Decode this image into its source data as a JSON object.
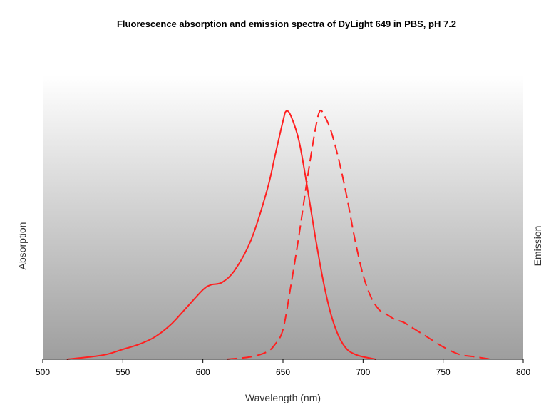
{
  "chart_data": {
    "type": "line",
    "title": "Fluorescence absorption and emission spectra of DyLight 649 in PBS, pH 7.2",
    "xlabel": "Wavelength (nm)",
    "ylabel_left": "Absorption",
    "ylabel_right": "Emission",
    "xlim": [
      500,
      800
    ],
    "ylim": [
      0,
      1
    ],
    "xticks": [
      500,
      550,
      600,
      650,
      700,
      750,
      800
    ],
    "grid": false,
    "legend": "none",
    "background": "vertical gradient, light gray at top to darker gray at bottom",
    "series": [
      {
        "style": "solid",
        "color": "#ff2020",
        "points": [
          [
            515,
            0.0
          ],
          [
            530,
            0.01
          ],
          [
            540,
            0.02
          ],
          [
            550,
            0.04
          ],
          [
            560,
            0.06
          ],
          [
            570,
            0.09
          ],
          [
            580,
            0.14
          ],
          [
            590,
            0.21
          ],
          [
            600,
            0.28
          ],
          [
            605,
            0.3
          ],
          [
            612,
            0.31
          ],
          [
            620,
            0.36
          ],
          [
            630,
            0.48
          ],
          [
            640,
            0.68
          ],
          [
            645,
            0.82
          ],
          [
            650,
            0.96
          ],
          [
            652,
            1.0
          ],
          [
            655,
            0.98
          ],
          [
            660,
            0.88
          ],
          [
            665,
            0.7
          ],
          [
            670,
            0.5
          ],
          [
            675,
            0.32
          ],
          [
            680,
            0.18
          ],
          [
            685,
            0.09
          ],
          [
            690,
            0.04
          ],
          [
            695,
            0.02
          ],
          [
            700,
            0.01
          ],
          [
            708,
            0.0
          ]
        ]
      },
      {
        "style": "dashed",
        "color": "#ff2020",
        "points": [
          [
            615,
            0.0
          ],
          [
            630,
            0.01
          ],
          [
            640,
            0.03
          ],
          [
            645,
            0.06
          ],
          [
            650,
            0.12
          ],
          [
            655,
            0.3
          ],
          [
            660,
            0.5
          ],
          [
            665,
            0.72
          ],
          [
            670,
            0.92
          ],
          [
            673,
            1.0
          ],
          [
            676,
            0.98
          ],
          [
            680,
            0.92
          ],
          [
            685,
            0.8
          ],
          [
            690,
            0.65
          ],
          [
            695,
            0.48
          ],
          [
            700,
            0.34
          ],
          [
            705,
            0.25
          ],
          [
            710,
            0.2
          ],
          [
            715,
            0.18
          ],
          [
            720,
            0.16
          ],
          [
            725,
            0.15
          ],
          [
            730,
            0.13
          ],
          [
            740,
            0.09
          ],
          [
            750,
            0.05
          ],
          [
            760,
            0.02
          ],
          [
            770,
            0.01
          ],
          [
            780,
            0.0
          ]
        ]
      }
    ]
  }
}
